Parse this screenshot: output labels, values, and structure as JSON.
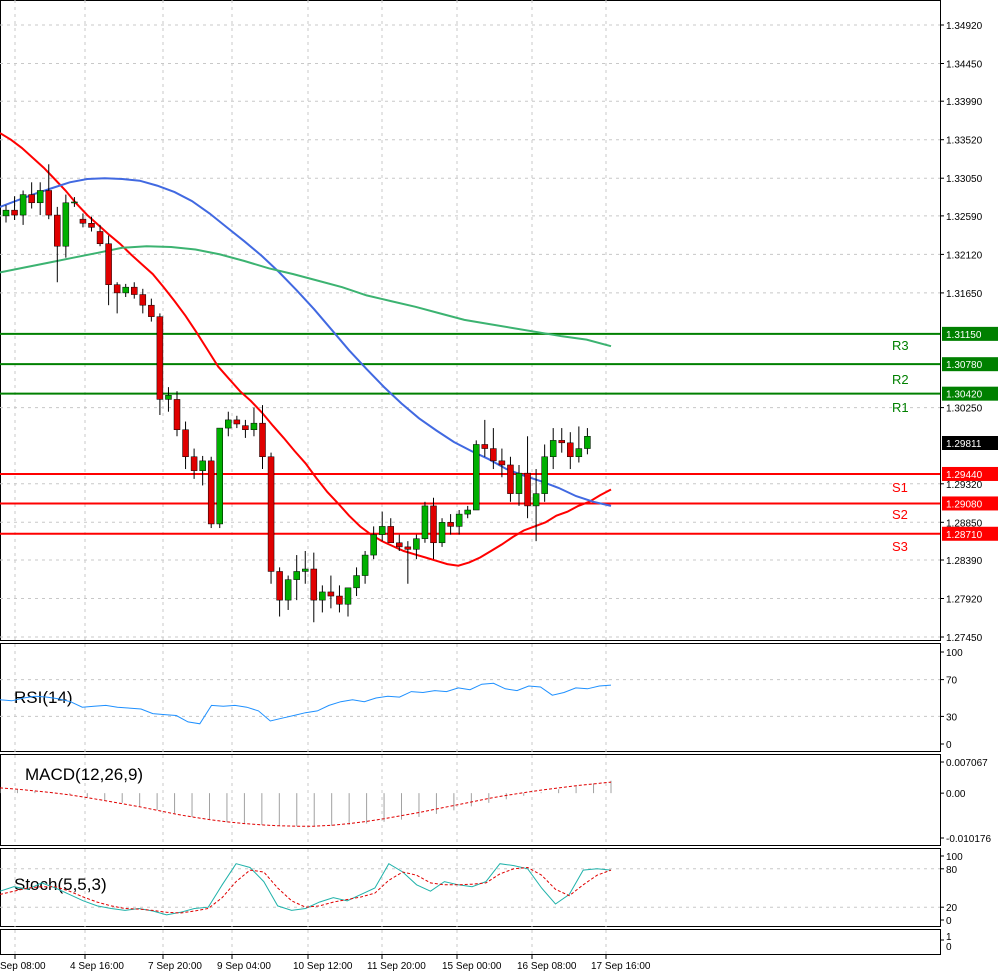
{
  "chart_data": {
    "type": "candlestick",
    "instrument_panel": {
      "y_ticks": [
        "1.34920",
        "1.34450",
        "1.33990",
        "1.33520",
        "1.33050",
        "1.32590",
        "1.32120",
        "1.31650",
        "1.30250",
        "1.29320",
        "1.28850",
        "1.28390",
        "1.27920",
        "1.27450"
      ],
      "ylim": [
        1.2745,
        1.3492
      ],
      "current_price": "1.29811",
      "levels": [
        {
          "name": "R3",
          "value": "1.31150",
          "color": "#008000"
        },
        {
          "name": "R2",
          "value": "1.30780",
          "color": "#008000"
        },
        {
          "name": "R1",
          "value": "1.30420",
          "color": "#008000"
        },
        {
          "name": "S1",
          "value": "1.29440",
          "color": "#ff0000"
        },
        {
          "name": "S2",
          "value": "1.29080",
          "color": "#ff0000"
        },
        {
          "name": "S3",
          "value": "1.28710",
          "color": "#ff0000"
        }
      ],
      "candles": [
        [
          1.3259,
          1.3272,
          1.3251,
          1.3266
        ],
        [
          1.3266,
          1.3283,
          1.3254,
          1.326
        ],
        [
          1.326,
          1.329,
          1.3248,
          1.3285
        ],
        [
          1.3285,
          1.33,
          1.3268,
          1.3275
        ],
        [
          1.3275,
          1.33,
          1.326,
          1.329
        ],
        [
          1.329,
          1.3322,
          1.3255,
          1.326
        ],
        [
          1.326,
          1.327,
          1.3178,
          1.3222
        ],
        [
          1.3222,
          1.3285,
          1.3208,
          1.3275
        ],
        [
          1.3275,
          1.3282,
          1.327,
          1.3276
        ],
        [
          1.3255,
          1.3262,
          1.3245,
          1.325
        ],
        [
          1.325,
          1.3258,
          1.324,
          1.3245
        ],
        [
          1.324,
          1.3248,
          1.3222,
          1.3225
        ],
        [
          1.3225,
          1.3235,
          1.315,
          1.3175
        ],
        [
          1.3175,
          1.3178,
          1.314,
          1.3165
        ],
        [
          1.3165,
          1.3176,
          1.316,
          1.3172
        ],
        [
          1.3172,
          1.3178,
          1.3158,
          1.3163
        ],
        [
          1.3163,
          1.317,
          1.314,
          1.315
        ],
        [
          1.315,
          1.3158,
          1.313,
          1.3136
        ],
        [
          1.3136,
          1.314,
          1.3016,
          1.3035
        ],
        [
          1.3035,
          1.305,
          1.302,
          1.304
        ],
        [
          1.3035,
          1.3045,
          1.299,
          1.2998
        ],
        [
          1.2998,
          1.3008,
          1.295,
          1.2965
        ],
        [
          1.2965,
          1.2975,
          1.2938,
          1.2948
        ],
        [
          1.2948,
          1.2966,
          1.293,
          1.296
        ],
        [
          1.296,
          1.2965,
          1.2878,
          1.2883
        ],
        [
          1.2883,
          1.3,
          1.2878,
          1.3
        ],
        [
          1.3,
          1.302,
          1.299,
          1.301
        ],
        [
          1.301,
          1.3015,
          1.3,
          1.3005
        ],
        [
          1.3003,
          1.301,
          1.2988,
          1.2998
        ],
        [
          1.2998,
          1.3025,
          1.299,
          1.3006
        ],
        [
          1.3006,
          1.3028,
          1.295,
          1.2965
        ],
        [
          1.2965,
          1.297,
          1.281,
          1.2825
        ],
        [
          1.2825,
          1.283,
          1.277,
          1.279
        ],
        [
          1.279,
          1.282,
          1.2778,
          1.2815
        ],
        [
          1.2815,
          1.2845,
          1.279,
          1.2825
        ],
        [
          1.2825,
          1.285,
          1.281,
          1.2828
        ],
        [
          1.2828,
          1.2848,
          1.2763,
          1.279
        ],
        [
          1.279,
          1.2808,
          1.2775,
          1.28
        ],
        [
          1.28,
          1.282,
          1.278,
          1.2795
        ],
        [
          1.2795,
          1.2808,
          1.2775,
          1.2785
        ],
        [
          1.2785,
          1.2805,
          1.277,
          1.2805
        ],
        [
          1.2805,
          1.283,
          1.2795,
          1.282
        ],
        [
          1.282,
          1.285,
          1.281,
          1.2845
        ],
        [
          1.2845,
          1.288,
          1.284,
          1.287
        ],
        [
          1.287,
          1.2898,
          1.2862,
          1.288
        ],
        [
          1.288,
          1.289,
          1.286,
          1.286
        ],
        [
          1.286,
          1.287,
          1.285,
          1.2855
        ],
        [
          1.2855,
          1.2862,
          1.281,
          1.2852
        ],
        [
          1.2852,
          1.287,
          1.284,
          1.2865
        ],
        [
          1.2865,
          1.291,
          1.286,
          1.2905
        ],
        [
          1.2905,
          1.2915,
          1.284,
          1.286
        ],
        [
          1.286,
          1.289,
          1.2855,
          1.2885
        ],
        [
          1.2885,
          1.2895,
          1.287,
          1.288
        ],
        [
          1.288,
          1.29,
          1.287,
          1.2895
        ],
        [
          1.2895,
          1.2905,
          1.289,
          1.29
        ],
        [
          1.29,
          1.2985,
          1.29,
          1.298
        ],
        [
          1.298,
          1.301,
          1.2965,
          1.2975
        ],
        [
          1.2975,
          1.3,
          1.295,
          1.296
        ],
        [
          1.296,
          1.2975,
          1.294,
          1.2955
        ],
        [
          1.2955,
          1.2965,
          1.291,
          1.292
        ],
        [
          1.292,
          1.2955,
          1.2905,
          1.2945
        ],
        [
          1.2945,
          1.299,
          1.289,
          1.2905
        ],
        [
          1.2905,
          1.295,
          1.2862,
          1.292
        ],
        [
          1.292,
          1.298,
          1.291,
          1.2965
        ],
        [
          1.2965,
          1.3,
          1.295,
          1.2985
        ],
        [
          1.2985,
          1.3,
          1.297,
          1.2982
        ],
        [
          1.2982,
          1.2995,
          1.295,
          1.2965
        ],
        [
          1.2965,
          1.3002,
          1.2958,
          1.2975
        ],
        [
          1.2975,
          1.3,
          1.2968,
          1.299
        ]
      ],
      "series": [
        {
          "color": "#ff0000",
          "values": [
            1.336,
            1.3352,
            1.3342,
            1.333,
            1.3318,
            1.3304,
            1.329,
            1.3274,
            1.326,
            1.3248,
            1.3236,
            1.3225,
            1.3212,
            1.32,
            1.3188,
            1.3172,
            1.3155,
            1.3137,
            1.3117,
            1.3096,
            1.3075,
            1.306,
            1.3045,
            1.3033,
            1.3019,
            1.3003,
            1.2988,
            1.2972,
            1.2957,
            1.2939,
            1.2922,
            1.2908,
            1.2893,
            1.288,
            1.287,
            1.2862,
            1.2856,
            1.285,
            1.2846,
            1.2842,
            1.2838,
            1.2834,
            1.2832,
            1.2836,
            1.2842,
            1.285,
            1.2858,
            1.2867,
            1.2875,
            1.288,
            1.2885,
            1.2893,
            1.2898,
            1.2905,
            1.291,
            1.2918,
            1.2925
          ]
        },
        {
          "color": "#4169e1",
          "values": [
            1.327,
            1.3278,
            1.3286,
            1.3293,
            1.33,
            1.3304,
            1.3305,
            1.3304,
            1.3302,
            1.3296,
            1.3288,
            1.3277,
            1.3262,
            1.3245,
            1.3228,
            1.321,
            1.319,
            1.3168,
            1.3145,
            1.312,
            1.3095,
            1.3072,
            1.305,
            1.303,
            1.3012,
            1.2997,
            1.2983,
            1.2972,
            1.2962,
            1.295,
            1.2942,
            1.2935,
            1.2927,
            1.2917,
            1.291,
            1.2905
          ]
        },
        {
          "color": "#3cb371",
          "values": [
            1.319,
            1.3196,
            1.3202,
            1.3208,
            1.3214,
            1.322,
            1.3222,
            1.3221,
            1.3218,
            1.3212,
            1.3204,
            1.3195,
            1.3188,
            1.318,
            1.3172,
            1.3162,
            1.3155,
            1.3148,
            1.314,
            1.3132,
            1.3127,
            1.3122,
            1.3117,
            1.3112,
            1.3108,
            1.31
          ]
        }
      ]
    },
    "rsi_panel": {
      "title": "RSI(14)",
      "y_ticks": [
        "100",
        "70",
        "30",
        "0"
      ],
      "ylim": [
        0,
        100
      ],
      "values": [
        48,
        47,
        50,
        52,
        51,
        49,
        46,
        40,
        41,
        42,
        40,
        39,
        38,
        33,
        32,
        31,
        24,
        22,
        42,
        41,
        42,
        40,
        36,
        25,
        28,
        31,
        34,
        36,
        42,
        46,
        48,
        46,
        50,
        52,
        51,
        57,
        56,
        58,
        57,
        61,
        59,
        65,
        66,
        60,
        58,
        63,
        62,
        53,
        56,
        61,
        60,
        63,
        64
      ]
    },
    "macd_panel": {
      "title": "MACD(12,26,9)",
      "y_ticks": [
        "0.007067",
        "0.00",
        "-0.010176"
      ],
      "ylim": [
        -0.010176,
        0.007067
      ],
      "histogram": [
        0.001,
        0.0008,
        0.0005,
        0.0002,
        -0.0003,
        -0.001,
        -0.0016,
        -0.0022,
        -0.003,
        -0.0038,
        -0.0046,
        -0.0054,
        -0.006,
        -0.0066,
        -0.007,
        -0.0072,
        -0.0074,
        -0.0075,
        -0.0075,
        -0.0074,
        -0.0072,
        -0.0069,
        -0.0065,
        -0.006,
        -0.0054,
        -0.0047,
        -0.0039,
        -0.003,
        -0.0022,
        -0.0014,
        -0.0006,
        0.0002,
        0.0009,
        0.0016,
        0.0022,
        0.0028
      ],
      "signal": [
        0.0012,
        0.0009,
        0.0005,
        0.0001,
        -0.0004,
        -0.001,
        -0.0017,
        -0.0024,
        -0.0031,
        -0.0039,
        -0.0047,
        -0.0054,
        -0.006,
        -0.0065,
        -0.0069,
        -0.0072,
        -0.0074,
        -0.0075,
        -0.0075,
        -0.0073,
        -0.0069,
        -0.0064,
        -0.0058,
        -0.0051,
        -0.0044,
        -0.0036,
        -0.0028,
        -0.002,
        -0.0012,
        -0.0005,
        0.0001,
        0.0007,
        0.0012,
        0.0017,
        0.0021,
        0.0025
      ]
    },
    "stoch_panel": {
      "title": "Stoch(5,5,3)",
      "y_ticks": [
        "100",
        "80",
        "20",
        "0"
      ],
      "ylim": [
        0,
        100
      ],
      "k": [
        45,
        52,
        48,
        58,
        50,
        40,
        30,
        22,
        18,
        15,
        18,
        14,
        8,
        12,
        18,
        20,
        55,
        88,
        82,
        60,
        22,
        15,
        18,
        28,
        35,
        30,
        40,
        50,
        88,
        75,
        55,
        45,
        60,
        55,
        52,
        60,
        88,
        85,
        80,
        50,
        25,
        40,
        78,
        80,
        78
      ],
      "d": [
        40,
        45,
        50,
        52,
        52,
        45,
        36,
        28,
        22,
        18,
        17,
        15,
        12,
        11,
        14,
        18,
        35,
        60,
        78,
        75,
        50,
        30,
        20,
        22,
        28,
        32,
        36,
        42,
        62,
        75,
        70,
        58,
        55,
        55,
        56,
        58,
        72,
        80,
        82,
        70,
        48,
        38,
        55,
        70,
        78
      ]
    },
    "x_ticks": [
      "Sep 08:00",
      "4 Sep 16:00",
      "7 Sep 20:00",
      "9 Sep 04:00",
      "10 Sep 12:00",
      "11 Sep 20:00",
      "15 Sep 00:00",
      "16 Sep 08:00",
      "17 Sep 16:00"
    ]
  }
}
